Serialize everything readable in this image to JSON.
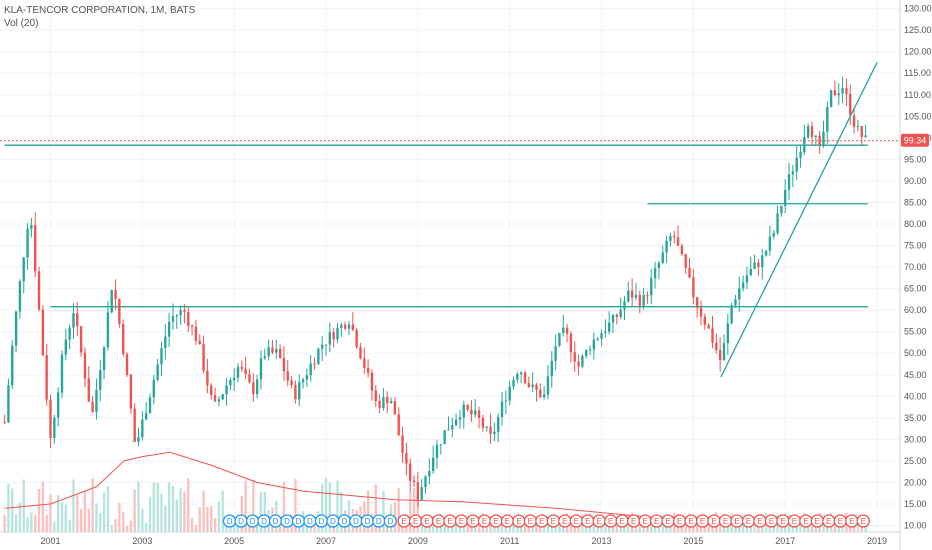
{
  "header": {
    "symbol_line": "KLA-TENCOR CORPORATION, 1M, BATS",
    "volume_line": "Vol (20)"
  },
  "colors": {
    "up": "#26a69a",
    "down": "#ef5350",
    "volume_up": "#b7e4dd",
    "volume_down": "#f9c2c0",
    "trendline": "#26a69a",
    "ma": "#ef5350",
    "grid": "#f0f3fa",
    "axis_text": "#555555"
  },
  "chart_data": {
    "type": "candlestick",
    "x_ticks": [
      "2001",
      "2003",
      "2005",
      "2007",
      "2009",
      "2011",
      "2013",
      "2015",
      "2017",
      "2019"
    ],
    "x_range": [
      1999.9,
      2019.5
    ],
    "y_ticks": [
      "10.00",
      "15.00",
      "20.00",
      "25.00",
      "30.00",
      "35.00",
      "40.00",
      "45.00",
      "50.00",
      "55.00",
      "60.00",
      "65.00",
      "70.00",
      "75.00",
      "80.00",
      "85.00",
      "90.00",
      "95.00",
      "100.00",
      "105.00",
      "110.00",
      "115.00",
      "120.00",
      "125.00",
      "130.00"
    ],
    "y_range": [
      8.5,
      132
    ],
    "last_price": {
      "label": "99.34",
      "value": 99.34
    },
    "key_points": [
      [
        2000.0,
        34
      ],
      [
        2000.2,
        55
      ],
      [
        2000.45,
        76
      ],
      [
        2000.55,
        84
      ],
      [
        2000.75,
        60
      ],
      [
        2001.0,
        30
      ],
      [
        2001.3,
        52
      ],
      [
        2001.5,
        60
      ],
      [
        2001.75,
        45
      ],
      [
        2001.9,
        35
      ],
      [
        2002.2,
        55
      ],
      [
        2002.35,
        67
      ],
      [
        2002.6,
        50
      ],
      [
        2002.85,
        28
      ],
      [
        2003.1,
        38
      ],
      [
        2003.4,
        50
      ],
      [
        2003.6,
        58
      ],
      [
        2003.9,
        60
      ],
      [
        2004.2,
        53
      ],
      [
        2004.55,
        37
      ],
      [
        2004.85,
        43
      ],
      [
        2005.1,
        47
      ],
      [
        2005.4,
        41
      ],
      [
        2005.65,
        50
      ],
      [
        2005.95,
        50
      ],
      [
        2006.3,
        40
      ],
      [
        2006.6,
        46
      ],
      [
        2006.9,
        52
      ],
      [
        2007.2,
        55
      ],
      [
        2007.5,
        58
      ],
      [
        2007.75,
        50
      ],
      [
        2008.1,
        38
      ],
      [
        2008.4,
        40
      ],
      [
        2008.75,
        23
      ],
      [
        2009.0,
        17
      ],
      [
        2009.35,
        27
      ],
      [
        2009.6,
        32
      ],
      [
        2009.95,
        37
      ],
      [
        2010.3,
        35
      ],
      [
        2010.6,
        30
      ],
      [
        2010.9,
        40
      ],
      [
        2011.2,
        47
      ],
      [
        2011.45,
        42
      ],
      [
        2011.75,
        40
      ],
      [
        2012.0,
        52
      ],
      [
        2012.2,
        55
      ],
      [
        2012.5,
        47
      ],
      [
        2012.75,
        52
      ],
      [
        2013.0,
        55
      ],
      [
        2013.3,
        58
      ],
      [
        2013.6,
        64
      ],
      [
        2013.9,
        62
      ],
      [
        2014.3,
        72
      ],
      [
        2014.55,
        78
      ],
      [
        2014.8,
        70
      ],
      [
        2015.05,
        62
      ],
      [
        2015.35,
        55
      ],
      [
        2015.6,
        48
      ],
      [
        2015.85,
        62
      ],
      [
        2016.15,
        68
      ],
      [
        2016.5,
        72
      ],
      [
        2016.75,
        78
      ],
      [
        2017.0,
        88
      ],
      [
        2017.3,
        97
      ],
      [
        2017.5,
        104
      ],
      [
        2017.75,
        97
      ],
      [
        2018.0,
        110
      ],
      [
        2018.25,
        112
      ],
      [
        2018.55,
        102
      ],
      [
        2018.75,
        99.34
      ]
    ],
    "volume_ma_points": [
      [
        2000.0,
        14
      ],
      [
        2001.0,
        15
      ],
      [
        2002.0,
        19
      ],
      [
        2002.6,
        25
      ],
      [
        2003.0,
        26
      ],
      [
        2003.6,
        27
      ],
      [
        2004.5,
        24
      ],
      [
        2005.5,
        20
      ],
      [
        2006.5,
        18
      ],
      [
        2007.5,
        17
      ],
      [
        2008.5,
        16
      ],
      [
        2010.0,
        15.5
      ],
      [
        2012.0,
        14
      ],
      [
        2013.5,
        12.5
      ],
      [
        2015.0,
        11
      ],
      [
        2016.5,
        10.5
      ],
      [
        2018.8,
        10.3
      ]
    ],
    "horizontal_lines": [
      {
        "y": 98.3,
        "x_start": 2000.0,
        "x_end": 2018.8
      },
      {
        "y": 84.7,
        "x_start": 2014.0,
        "x_end": 2018.8
      },
      {
        "y": 60.8,
        "x_start": 2001.0,
        "x_end": 2018.8
      }
    ],
    "trendlines": [
      {
        "x1": 2015.6,
        "y1": 44.5,
        "x2": 2019.0,
        "y2": 117.5
      }
    ],
    "dividend_markers": {
      "label": "D",
      "x": [
        2004.9,
        2005.15,
        2005.4,
        2005.65,
        2005.9,
        2006.15,
        2006.4,
        2006.65,
        2006.9,
        2007.15,
        2007.4,
        2007.65,
        2007.9,
        2008.15,
        2008.4
      ]
    },
    "earnings_markers": {
      "label": "E",
      "x": [
        2008.7,
        2008.95,
        2009.2,
        2009.45,
        2009.7,
        2009.95,
        2010.2,
        2010.45,
        2010.7,
        2010.95,
        2011.2,
        2011.45,
        2011.7,
        2011.95,
        2012.2,
        2012.45,
        2012.7,
        2012.95,
        2013.2,
        2013.45,
        2013.7,
        2013.95,
        2014.2,
        2014.45,
        2014.7,
        2014.95,
        2015.2,
        2015.45,
        2015.7,
        2015.95,
        2016.2,
        2016.45,
        2016.7,
        2016.95,
        2017.2,
        2017.45,
        2017.7,
        2017.95,
        2018.2,
        2018.45,
        2018.7
      ]
    }
  }
}
